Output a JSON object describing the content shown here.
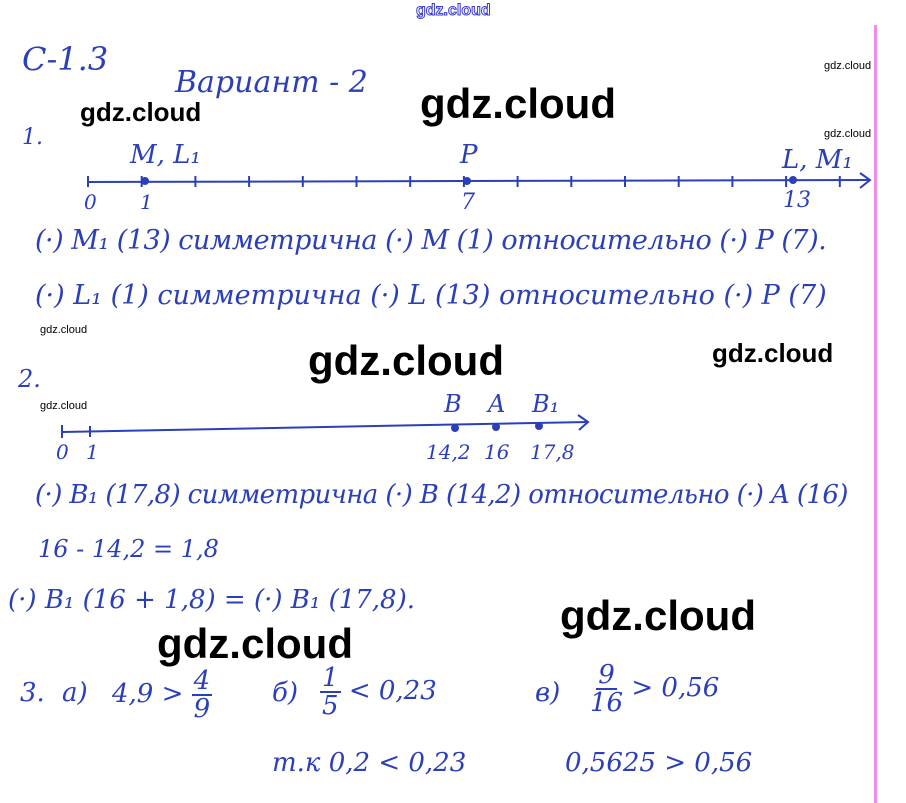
{
  "watermarks": {
    "top": "gdz.cloud",
    "items": [
      "gdz.cloud",
      "gdz.cloud",
      "gdz.cloud",
      "gdz.cloud",
      "gdz.cloud",
      "gdz.cloud",
      "gdz.cloud",
      "gdz.cloud",
      "gdz.cloud",
      "gdz.cloud"
    ]
  },
  "header": {
    "section": "С-1.3",
    "variant": "Вариант - 2"
  },
  "task1": {
    "number": "1.",
    "labels": {
      "left_point": "M, L₁",
      "middle_point": "P",
      "right_point": "L, M₁"
    },
    "ticks": {
      "zero": "0",
      "one": "1",
      "seven": "7",
      "thirteen": "13"
    },
    "line1": "(·) M₁ (13) симметрична (·) M (1) относительно (·) P (7).",
    "line2": "(·) L₁ (1) симметрична (·) L (13) относительно (·) P (7)"
  },
  "task2": {
    "number": "2.",
    "labels": {
      "b": "B",
      "a": "A",
      "b1": "B₁"
    },
    "ticks": {
      "zero": "0",
      "one": "1",
      "b": "14,2",
      "a": "16",
      "b1": "17,8"
    },
    "line1": "(·) B₁ (17,8) симметрична (·) B (14,2) относительно (·) A (16)",
    "line2": "16 - 14,2 = 1,8",
    "line3": "(·) B₁ (16 + 1,8) = (·) B₁ (17,8)."
  },
  "task3": {
    "number": "3.",
    "a_label": "а)",
    "a_left": "4,9 >",
    "a_num": "4",
    "a_den": "9",
    "b_label": "б)",
    "b_num": "1",
    "b_den": "5",
    "b_right": "< 0,23",
    "c_label": "в)",
    "c_num": "9",
    "c_den": "16",
    "c_right": "> 0,56",
    "b_reason": "т.к 0,2 < 0,23",
    "c_reason": "0,5625 > 0,56"
  },
  "colors": {
    "ink": "#2b3fb8",
    "margin": "#f08ce6",
    "watermark": "#000000"
  }
}
